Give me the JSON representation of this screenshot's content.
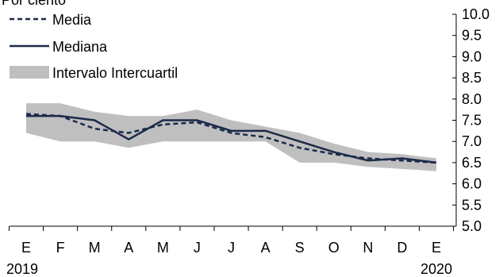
{
  "chart_data": {
    "type": "line",
    "title": "Por ciento",
    "categories": [
      "E",
      "F",
      "M",
      "A",
      "M",
      "J",
      "J",
      "A",
      "S",
      "O",
      "N",
      "D",
      "E"
    ],
    "year_labels": [
      "2019",
      "2020"
    ],
    "ylim": [
      5.0,
      10.0
    ],
    "y_ticks": [
      "10.0",
      "9.5",
      "9.0",
      "8.5",
      "8.0",
      "7.5",
      "7.0",
      "6.5",
      "6.0",
      "5.5",
      "5.0"
    ],
    "y_axis_position": "right",
    "legend_position": "top-left",
    "series": [
      {
        "name": "Media",
        "style": "dashed",
        "color": "#1b2a4a",
        "values": [
          7.65,
          7.6,
          7.3,
          7.2,
          7.4,
          7.45,
          7.2,
          7.1,
          6.85,
          6.7,
          6.6,
          6.55,
          6.5
        ]
      },
      {
        "name": "Mediana",
        "style": "solid",
        "color": "#1b2a4a",
        "values": [
          7.6,
          7.6,
          7.5,
          7.05,
          7.5,
          7.5,
          7.25,
          7.25,
          7.0,
          6.75,
          6.55,
          6.6,
          6.5
        ]
      }
    ],
    "band": {
      "name": "Intervalo Intercuartil",
      "color": "#bfbfbf",
      "upper": [
        7.9,
        7.9,
        7.7,
        7.6,
        7.6,
        7.75,
        7.5,
        7.35,
        7.2,
        6.95,
        6.75,
        6.7,
        6.6
      ],
      "lower": [
        7.2,
        7.0,
        7.0,
        6.85,
        7.0,
        7.0,
        7.0,
        7.0,
        6.5,
        6.5,
        6.4,
        6.35,
        6.3
      ]
    }
  }
}
